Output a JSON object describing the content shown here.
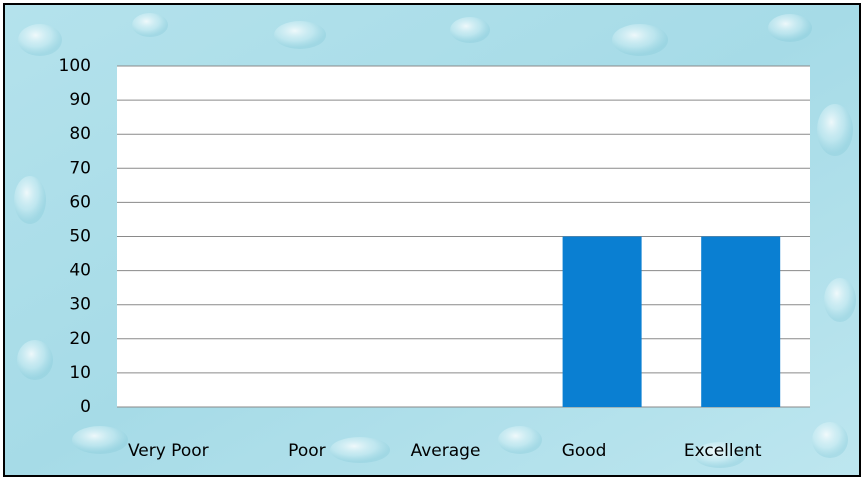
{
  "chart_data": {
    "type": "bar",
    "categories": [
      "Very Poor",
      "Poor",
      "Average",
      "Good",
      "Excellent"
    ],
    "values": [
      0,
      0,
      0,
      50,
      50
    ],
    "color": "#0a7fd2",
    "ylim": [
      0,
      100
    ],
    "yticks": [
      0,
      10,
      20,
      30,
      40,
      50,
      60,
      70,
      80,
      90,
      100
    ],
    "grid": true
  }
}
